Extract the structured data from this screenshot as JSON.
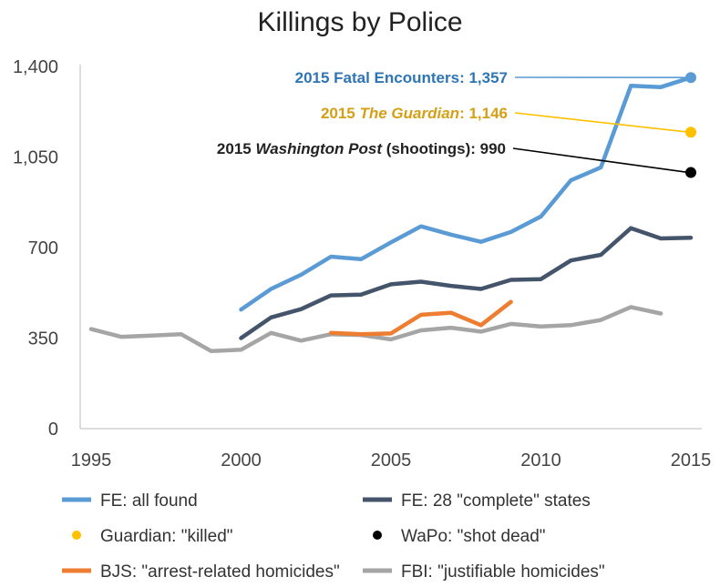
{
  "chart_data": {
    "type": "line",
    "title": "Killings by Police",
    "xlabel": "",
    "ylabel": "",
    "xlim": [
      1995,
      2015
    ],
    "ylim": [
      0,
      1400
    ],
    "x_ticks": [
      "1995",
      "2000",
      "2005",
      "2010",
      "2015"
    ],
    "x_tick_values": [
      1995,
      2000,
      2005,
      2010,
      2015
    ],
    "y_ticks": [
      "0",
      "350",
      "700",
      "1,050",
      "1,400"
    ],
    "y_tick_values": [
      0,
      350,
      700,
      1050,
      1400
    ],
    "series": [
      {
        "name": "FE: all found",
        "color": "#5b9bd5",
        "x": [
          2000,
          2001,
          2002,
          2003,
          2004,
          2005,
          2006,
          2007,
          2008,
          2009,
          2010,
          2011,
          2012,
          2013,
          2014,
          2015
        ],
        "values": [
          460,
          540,
          595,
          665,
          655,
          720,
          782,
          750,
          722,
          760,
          820,
          960,
          1010,
          1325,
          1320,
          1357
        ]
      },
      {
        "name": "FE: 28 \"complete\" states",
        "color": "#44546a",
        "x": [
          2000,
          2001,
          2002,
          2003,
          2004,
          2005,
          2006,
          2007,
          2008,
          2009,
          2010,
          2011,
          2012,
          2013,
          2014,
          2015
        ],
        "values": [
          350,
          430,
          462,
          515,
          518,
          558,
          568,
          552,
          540,
          575,
          578,
          650,
          672,
          775,
          735,
          738
        ]
      },
      {
        "name": "BJS: \"arrest-related homicides\"",
        "color": "#ed7d31",
        "x": [
          2003,
          2004,
          2005,
          2006,
          2007,
          2008,
          2009
        ],
        "values": [
          370,
          365,
          368,
          440,
          448,
          400,
          490
        ]
      },
      {
        "name": "FBI: \"justifiable homicides\"",
        "color": "#a5a5a5",
        "x": [
          1995,
          1996,
          1997,
          1998,
          1999,
          2000,
          2001,
          2002,
          2003,
          2004,
          2005,
          2006,
          2007,
          2008,
          2009,
          2010,
          2011,
          2012,
          2013,
          2014
        ],
        "values": [
          385,
          355,
          360,
          365,
          300,
          305,
          370,
          340,
          365,
          362,
          345,
          380,
          390,
          375,
          405,
          395,
          400,
          420,
          470,
          445
        ]
      }
    ],
    "points": [
      {
        "name": "Guardian: \"killed\"",
        "color": "#ffc000",
        "x": 2015,
        "value": 1146
      },
      {
        "name": "WaPo: \"shot dead\"",
        "color": "#000000",
        "x": 2015,
        "value": 990
      }
    ],
    "annotations": [
      {
        "parts": [
          {
            "text": "2015 Fatal Encounters:  1,357",
            "italic": false
          }
        ],
        "color": "#2e75b6",
        "x": 2015,
        "value": 1357
      },
      {
        "parts": [
          {
            "text": "2015 ",
            "italic": false
          },
          {
            "text": "The Guardian",
            "italic": true
          },
          {
            "text": ":  1,146",
            "italic": false
          }
        ],
        "color": "#d4a017",
        "x": 2015,
        "value": 1146
      },
      {
        "parts": [
          {
            "text": "2015 ",
            "italic": false
          },
          {
            "text": "Washington Post",
            "italic": true
          },
          {
            "text": " (shootings):    990",
            "italic": false
          }
        ],
        "color": "#222222",
        "x": 2015,
        "value": 990
      }
    ],
    "legend": [
      {
        "label": "FE: all found",
        "color": "#5b9bd5",
        "marker": "line"
      },
      {
        "label": "FE: 28 \"complete\" states",
        "color": "#44546a",
        "marker": "line"
      },
      {
        "label": "Guardian: \"killed\"",
        "color": "#ffc000",
        "marker": "dot"
      },
      {
        "label": "WaPo: \"shot dead\"",
        "color": "#000000",
        "marker": "dot"
      },
      {
        "label": "BJS: \"arrest-related homicides\"",
        "color": "#ed7d31",
        "marker": "line"
      },
      {
        "label": "FBI: \"justifiable homicides\"",
        "color": "#a5a5a5",
        "marker": "line"
      }
    ],
    "legend_position": "bottom",
    "grid": false
  }
}
